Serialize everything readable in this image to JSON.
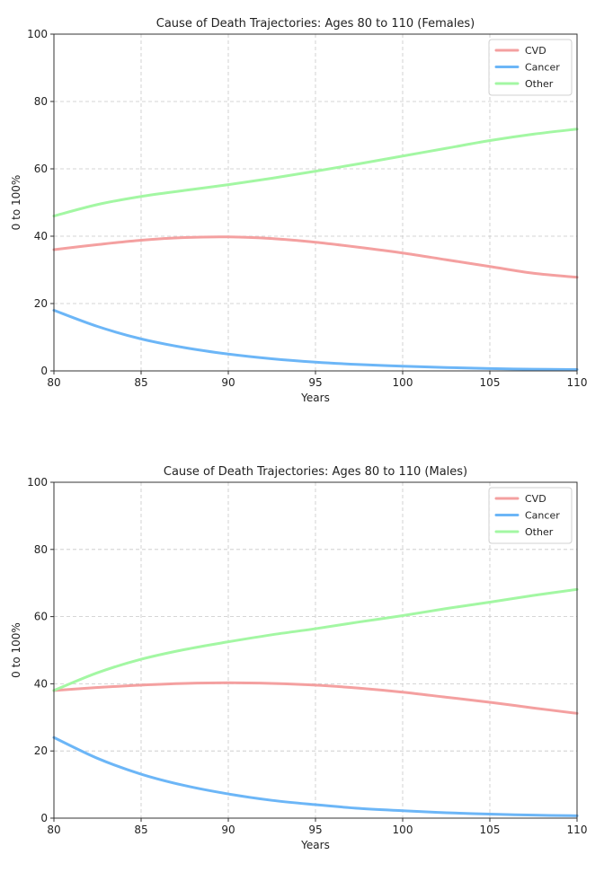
{
  "chart_data": [
    {
      "type": "line",
      "title": "Cause of Death Trajectories: Ages 80 to 110 (Females)",
      "xlabel": "Years",
      "ylabel": "0 to 100%",
      "xlim": [
        80,
        110
      ],
      "ylim": [
        0,
        100
      ],
      "xticks": [
        "80",
        "85",
        "90",
        "95",
        "100",
        "105",
        "110"
      ],
      "yticks": [
        "0",
        "20",
        "40",
        "60",
        "80",
        "100"
      ],
      "grid": true,
      "legend_position": "top-right",
      "x": [
        80,
        82.5,
        85,
        87.5,
        90,
        92.5,
        95,
        97.5,
        100,
        102.5,
        105,
        107.5,
        110
      ],
      "series": [
        {
          "name": "CVD",
          "color": "#f4a0a0",
          "values": [
            36.0,
            37.5,
            38.8,
            39.6,
            39.8,
            39.3,
            38.2,
            36.7,
            35.0,
            33.0,
            31.0,
            29.0,
            27.8
          ]
        },
        {
          "name": "Cancer",
          "color": "#6cb6f7",
          "values": [
            18.0,
            13.2,
            9.5,
            6.9,
            5.0,
            3.6,
            2.6,
            1.9,
            1.4,
            1.0,
            0.7,
            0.5,
            0.4
          ]
        },
        {
          "name": "Other",
          "color": "#a3f7a3",
          "values": [
            46.0,
            49.4,
            51.8,
            53.6,
            55.3,
            57.2,
            59.3,
            61.5,
            63.8,
            66.1,
            68.4,
            70.3,
            71.8
          ]
        }
      ]
    },
    {
      "type": "line",
      "title": "Cause of Death Trajectories: Ages 80 to 110 (Males)",
      "xlabel": "Years",
      "ylabel": "0 to 100%",
      "xlim": [
        80,
        110
      ],
      "ylim": [
        0,
        100
      ],
      "xticks": [
        "80",
        "85",
        "90",
        "95",
        "100",
        "105",
        "110"
      ],
      "yticks": [
        "0",
        "20",
        "40",
        "60",
        "80",
        "100"
      ],
      "grid": true,
      "legend_position": "top-right",
      "x": [
        80,
        82.5,
        85,
        87.5,
        90,
        92.5,
        95,
        97.5,
        100,
        102.5,
        105,
        107.5,
        110
      ],
      "series": [
        {
          "name": "CVD",
          "color": "#f4a0a0",
          "values": [
            38.0,
            38.9,
            39.6,
            40.1,
            40.3,
            40.1,
            39.6,
            38.7,
            37.5,
            36.0,
            34.5,
            32.8,
            31.2
          ]
        },
        {
          "name": "Cancer",
          "color": "#6cb6f7",
          "values": [
            24.0,
            17.8,
            13.1,
            9.7,
            7.2,
            5.3,
            4.0,
            2.9,
            2.2,
            1.6,
            1.2,
            0.9,
            0.7
          ]
        },
        {
          "name": "Other",
          "color": "#a3f7a3",
          "values": [
            38.0,
            43.3,
            47.3,
            50.2,
            52.5,
            54.6,
            56.4,
            58.4,
            60.3,
            62.4,
            64.3,
            66.3,
            68.1
          ]
        }
      ]
    }
  ]
}
